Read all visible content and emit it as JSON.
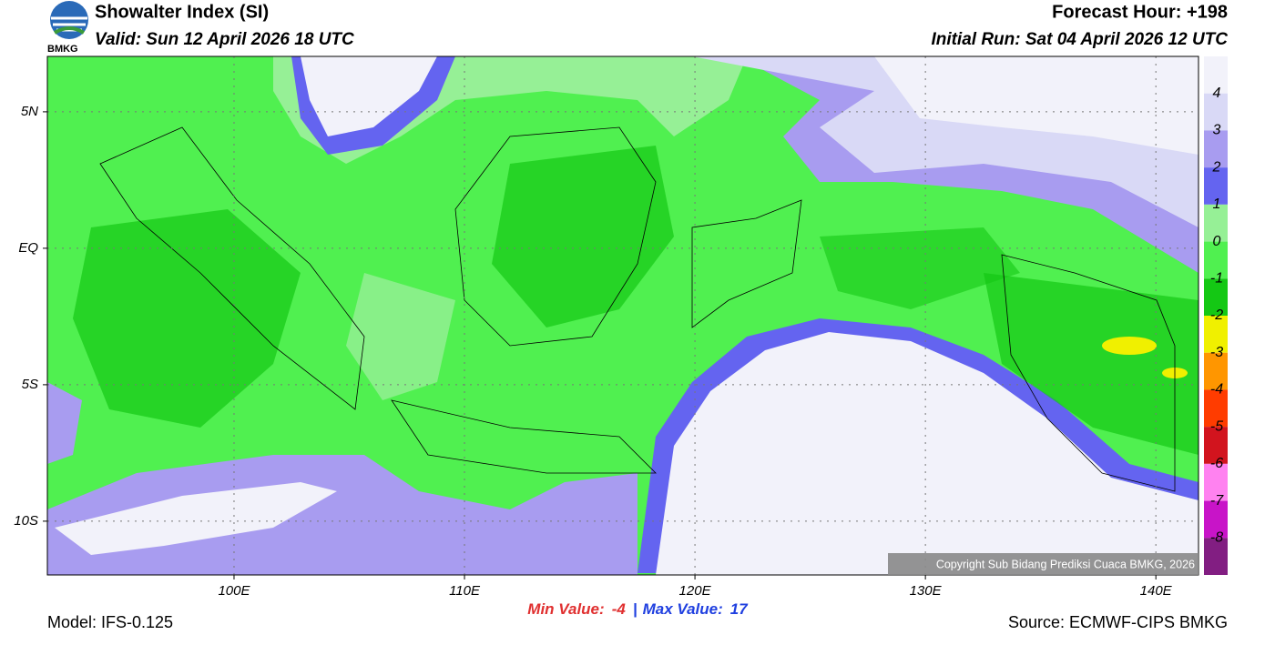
{
  "header": {
    "logo_text": "BMKG",
    "title": "Showalter Index (SI)",
    "valid": "Valid: Sun 12 April 2026 18 UTC",
    "forecast_hour": "Forecast Hour: +198",
    "initial_run": "Initial Run: Sat 04 April 2026 12 UTC"
  },
  "map": {
    "lon_range": [
      91.9,
      141.85
    ],
    "lat_range": [
      -11.97,
      7.03
    ],
    "lon_ticks": [
      {
        "value": 100,
        "label": "100E"
      },
      {
        "value": 110,
        "label": "110E"
      },
      {
        "value": 120,
        "label": "120E"
      },
      {
        "value": 130,
        "label": "130E"
      },
      {
        "value": 140,
        "label": "140E"
      }
    ],
    "lat_ticks": [
      {
        "value": 5,
        "label": "5N"
      },
      {
        "value": 0,
        "label": "EQ"
      },
      {
        "value": -5,
        "label": "5S"
      },
      {
        "value": -10,
        "label": "10S"
      }
    ],
    "copyright": "Copyright Sub Bidang Prediksi Cuaca BMKG, 2026"
  },
  "colorbar": {
    "colors": [
      "#f2f2fa",
      "#d9d9f6",
      "#a89cf0",
      "#6464f0",
      "#96f096",
      "#50f050",
      "#14c814",
      "#f0f000",
      "#ff9600",
      "#ff3c00",
      "#d2141e",
      "#ff82f0",
      "#c814c8",
      "#821e82"
    ],
    "levels": [
      4,
      3,
      2,
      1,
      0,
      -1,
      -2,
      -3,
      -4,
      -5,
      -6,
      -7,
      -8
    ]
  },
  "stats": {
    "min_label": "Min Value:",
    "min_value": -4,
    "max_label": "Max Value:",
    "max_value": 17
  },
  "footer": {
    "model": "Model: IFS-0.125",
    "source": "Source: ECMWF-CIPS BMKG"
  }
}
